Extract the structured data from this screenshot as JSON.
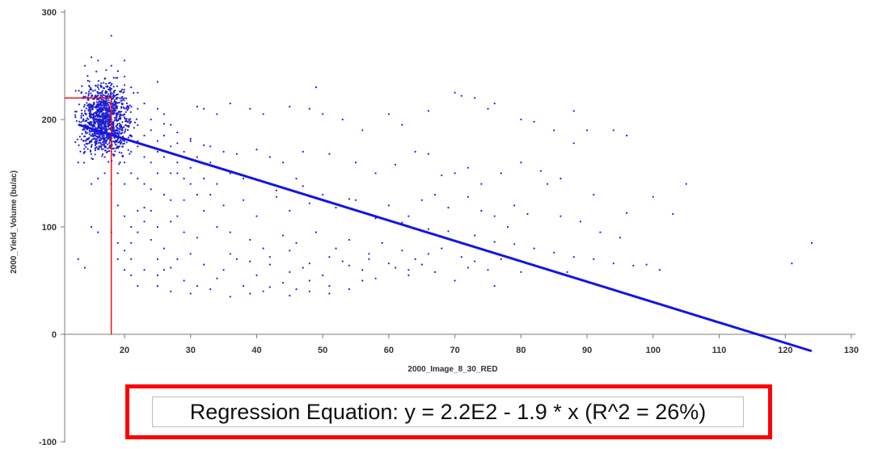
{
  "chart_data": {
    "type": "scatter",
    "title": "",
    "xlabel": "2000_Image_8_30_RED",
    "ylabel": "2000_Yield_Volume (bu/ac)",
    "xlim": [
      10,
      130
    ],
    "ylim": [
      -100,
      300
    ],
    "x_ticks": [
      "20",
      "30",
      "40",
      "50",
      "60",
      "70",
      "80",
      "90",
      "100",
      "110",
      "120",
      "130"
    ],
    "y_ticks": [
      "300",
      "200",
      "100",
      "0",
      "-100"
    ],
    "grid": false,
    "legend": "none",
    "point_color": "#1f1fd0",
    "regression": {
      "equation_label": "Regression Equation: y = 2.2E2 - 1.9 * x (R^2 = 26%)",
      "intercept": 220,
      "slope": -1.9,
      "r_squared_percent": 26,
      "x_range": [
        13,
        124
      ],
      "color": "#1414e6"
    },
    "reference_lines": {
      "x": 18,
      "y": 220,
      "color": "#ee1111"
    },
    "cluster": {
      "center": [
        17,
        200
      ],
      "spread": [
        1.8,
        16
      ],
      "count": 1200
    },
    "points": [
      [
        20,
        232
      ],
      [
        22,
        210
      ],
      [
        25,
        235
      ],
      [
        31,
        212
      ],
      [
        32,
        210
      ],
      [
        34,
        205
      ],
      [
        36,
        215
      ],
      [
        39,
        210
      ],
      [
        41,
        205
      ],
      [
        45,
        212
      ],
      [
        48,
        210
      ],
      [
        49,
        230
      ],
      [
        50,
        205
      ],
      [
        53,
        200
      ],
      [
        56,
        190
      ],
      [
        60,
        205
      ],
      [
        62,
        195
      ],
      [
        66,
        208
      ],
      [
        70,
        225
      ],
      [
        71,
        222
      ],
      [
        73,
        220
      ],
      [
        75,
        210
      ],
      [
        76,
        215
      ],
      [
        80,
        200
      ],
      [
        82,
        198
      ],
      [
        85,
        190
      ],
      [
        88,
        208
      ],
      [
        90,
        190
      ],
      [
        94,
        190
      ],
      [
        96,
        185
      ],
      [
        30,
        180
      ],
      [
        33,
        175
      ],
      [
        35,
        170
      ],
      [
        37,
        168
      ],
      [
        40,
        172
      ],
      [
        42,
        165
      ],
      [
        44,
        160
      ],
      [
        47,
        170
      ],
      [
        51,
        168
      ],
      [
        55,
        160
      ],
      [
        58,
        150
      ],
      [
        61,
        158
      ],
      [
        64,
        170
      ],
      [
        66,
        168
      ],
      [
        68,
        148
      ],
      [
        72,
        155
      ],
      [
        74,
        140
      ],
      [
        77,
        150
      ],
      [
        80,
        160
      ],
      [
        83,
        152
      ],
      [
        86,
        145
      ],
      [
        88,
        178
      ],
      [
        91,
        130
      ],
      [
        100,
        128
      ],
      [
        103,
        112
      ],
      [
        105,
        140
      ],
      [
        96,
        113
      ],
      [
        84,
        140
      ],
      [
        79,
        120
      ],
      [
        70,
        150
      ],
      [
        28,
        150
      ],
      [
        30,
        140
      ],
      [
        33,
        130
      ],
      [
        35,
        120
      ],
      [
        38,
        125
      ],
      [
        40,
        110
      ],
      [
        43,
        128
      ],
      [
        45,
        115
      ],
      [
        48,
        122
      ],
      [
        50,
        130
      ],
      [
        52,
        118
      ],
      [
        55,
        125
      ],
      [
        57,
        112
      ],
      [
        60,
        120
      ],
      [
        63,
        110
      ],
      [
        65,
        125
      ],
      [
        67,
        130
      ],
      [
        69,
        118
      ],
      [
        72,
        128
      ],
      [
        74,
        115
      ],
      [
        76,
        110
      ],
      [
        78,
        100
      ],
      [
        81,
        112
      ],
      [
        86,
        110
      ],
      [
        89,
        105
      ],
      [
        92,
        95
      ],
      [
        95,
        90
      ],
      [
        99,
        65
      ],
      [
        101,
        60
      ],
      [
        121,
        66
      ],
      [
        124,
        85
      ],
      [
        23,
        118
      ],
      [
        25,
        100
      ],
      [
        27,
        105
      ],
      [
        29,
        95
      ],
      [
        31,
        90
      ],
      [
        34,
        100
      ],
      [
        36,
        95
      ],
      [
        39,
        88
      ],
      [
        41,
        80
      ],
      [
        44,
        92
      ],
      [
        46,
        85
      ],
      [
        49,
        95
      ],
      [
        52,
        80
      ],
      [
        54,
        88
      ],
      [
        57,
        75
      ],
      [
        59,
        85
      ],
      [
        62,
        78
      ],
      [
        64,
        70
      ],
      [
        66,
        75
      ],
      [
        68,
        80
      ],
      [
        71,
        72
      ],
      [
        73,
        68
      ],
      [
        75,
        60
      ],
      [
        77,
        70
      ],
      [
        80,
        58
      ],
      [
        83,
        62
      ],
      [
        87,
        58
      ],
      [
        26,
        80
      ],
      [
        28,
        70
      ],
      [
        30,
        75
      ],
      [
        32,
        65
      ],
      [
        35,
        60
      ],
      [
        37,
        70
      ],
      [
        40,
        55
      ],
      [
        42,
        65
      ],
      [
        45,
        58
      ],
      [
        47,
        62
      ],
      [
        50,
        55
      ],
      [
        53,
        68
      ],
      [
        56,
        60
      ],
      [
        58,
        52
      ],
      [
        61,
        62
      ],
      [
        63,
        55
      ],
      [
        65,
        65
      ],
      [
        67,
        58
      ],
      [
        70,
        50
      ],
      [
        72,
        62
      ],
      [
        76,
        45
      ],
      [
        23,
        60
      ],
      [
        25,
        55
      ],
      [
        27,
        62
      ],
      [
        29,
        50
      ],
      [
        31,
        45
      ],
      [
        34,
        52
      ],
      [
        38,
        45
      ],
      [
        41,
        40
      ],
      [
        44,
        48
      ],
      [
        46,
        42
      ],
      [
        48,
        50
      ],
      [
        51,
        45
      ],
      [
        54,
        42
      ],
      [
        56,
        50
      ],
      [
        20,
        60
      ],
      [
        21,
        55
      ],
      [
        22,
        45
      ],
      [
        19,
        70
      ],
      [
        21,
        85
      ],
      [
        22,
        95
      ],
      [
        24,
        88
      ],
      [
        25,
        70
      ],
      [
        26,
        60
      ],
      [
        28,
        110
      ],
      [
        29,
        125
      ],
      [
        31,
        130
      ],
      [
        32,
        115
      ],
      [
        13,
        70
      ],
      [
        14,
        62
      ],
      [
        15,
        100
      ],
      [
        16,
        95
      ],
      [
        14,
        170
      ],
      [
        15,
        175
      ],
      [
        13,
        160
      ],
      [
        20,
        160
      ],
      [
        21,
        150
      ],
      [
        22,
        145
      ],
      [
        23,
        140
      ],
      [
        24,
        135
      ],
      [
        25,
        150
      ],
      [
        26,
        130
      ],
      [
        27,
        125
      ],
      [
        28,
        160
      ],
      [
        29,
        145
      ],
      [
        30,
        155
      ],
      [
        32,
        145
      ],
      [
        34,
        140
      ],
      [
        36,
        150
      ],
      [
        38,
        145
      ],
      [
        42,
        140
      ],
      [
        46,
        145
      ],
      [
        21,
        170
      ],
      [
        22,
        175
      ],
      [
        23,
        165
      ],
      [
        24,
        160
      ],
      [
        25,
        170
      ],
      [
        26,
        165
      ],
      [
        27,
        150
      ],
      [
        19,
        120
      ],
      [
        20,
        110
      ],
      [
        21,
        100
      ],
      [
        22,
        115
      ],
      [
        23,
        105
      ],
      [
        24,
        115
      ],
      [
        18,
        95
      ],
      [
        19,
        85
      ],
      [
        20,
        78
      ],
      [
        21,
        70
      ],
      [
        18,
        140
      ],
      [
        19,
        150
      ],
      [
        20,
        140
      ],
      [
        17,
        150
      ],
      [
        16,
        145
      ],
      [
        15,
        140
      ],
      [
        17,
        165
      ],
      [
        18,
        170
      ],
      [
        19,
        175
      ],
      [
        20,
        180
      ],
      [
        21,
        185
      ],
      [
        22,
        180
      ],
      [
        23,
        185
      ],
      [
        24,
        190
      ],
      [
        25,
        180
      ],
      [
        26,
        185
      ],
      [
        27,
        175
      ],
      [
        28,
        178
      ],
      [
        29,
        170
      ],
      [
        31,
        165
      ],
      [
        33,
        160
      ],
      [
        24,
        200
      ],
      [
        25,
        210
      ],
      [
        26,
        205
      ],
      [
        27,
        195
      ],
      [
        23,
        215
      ],
      [
        22,
        225
      ],
      [
        21,
        230
      ],
      [
        20,
        240
      ],
      [
        19,
        245
      ],
      [
        18,
        250
      ],
      [
        16,
        255
      ],
      [
        15,
        258
      ],
      [
        14,
        250
      ],
      [
        18,
        278
      ],
      [
        20,
        255
      ],
      [
        17,
        238
      ],
      [
        16,
        232
      ],
      [
        15,
        228
      ],
      [
        26,
        196
      ],
      [
        28,
        188
      ],
      [
        30,
        182
      ],
      [
        32,
        176
      ],
      [
        43,
        134
      ],
      [
        47,
        138
      ],
      [
        54,
        126
      ],
      [
        58,
        108
      ],
      [
        62,
        104
      ],
      [
        66,
        98
      ],
      [
        69,
        96
      ],
      [
        73,
        92
      ],
      [
        76,
        86
      ],
      [
        79,
        84
      ],
      [
        82,
        80
      ],
      [
        85,
        76
      ],
      [
        88,
        72
      ],
      [
        91,
        70
      ],
      [
        94,
        66
      ],
      [
        97,
        64
      ],
      [
        25,
        45
      ],
      [
        27,
        40
      ],
      [
        30,
        38
      ],
      [
        33,
        42
      ],
      [
        36,
        35
      ],
      [
        39,
        38
      ],
      [
        42,
        44
      ],
      [
        45,
        36
      ],
      [
        48,
        40
      ],
      [
        51,
        38
      ],
      [
        36,
        75
      ],
      [
        39,
        68
      ],
      [
        42,
        72
      ],
      [
        45,
        78
      ],
      [
        48,
        66
      ],
      [
        51,
        72
      ],
      [
        54,
        64
      ],
      [
        57,
        70
      ],
      [
        60,
        66
      ],
      [
        63,
        60
      ]
    ]
  }
}
